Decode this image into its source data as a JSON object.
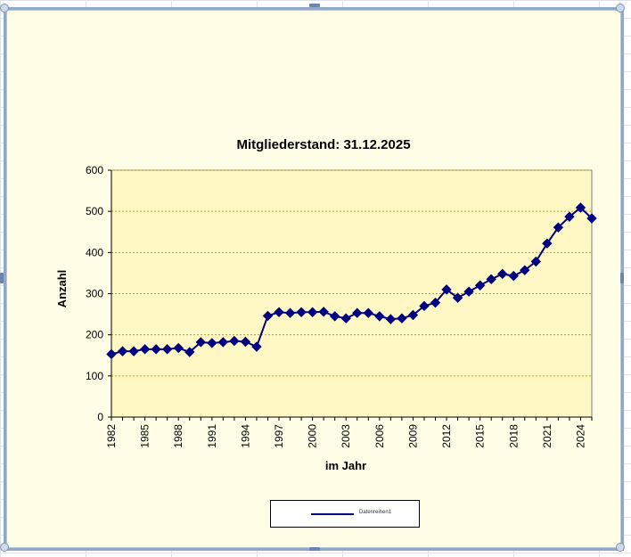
{
  "chart_data": {
    "type": "line",
    "title": "Mitgliederstand: 31.12.2025",
    "xlabel": "im Jahr",
    "ylabel": "Anzahl",
    "ylim": [
      0,
      600
    ],
    "yticks": [
      0,
      100,
      200,
      300,
      400,
      500,
      600
    ],
    "xticks": [
      1982,
      1985,
      1988,
      1991,
      1994,
      1997,
      2000,
      2003,
      2006,
      2009,
      2012,
      2015,
      2018,
      2021,
      2024
    ],
    "grid": true,
    "legend_position": "bottom",
    "series": [
      {
        "name": "Datenreihen1",
        "color": "#000080",
        "marker": "diamond",
        "x": [
          1982,
          1983,
          1984,
          1985,
          1986,
          1987,
          1988,
          1989,
          1990,
          1991,
          1992,
          1993,
          1994,
          1995,
          1996,
          1997,
          1998,
          1999,
          2000,
          2001,
          2002,
          2003,
          2004,
          2005,
          2006,
          2007,
          2008,
          2009,
          2010,
          2011,
          2012,
          2013,
          2014,
          2015,
          2016,
          2017,
          2018,
          2019,
          2020,
          2021,
          2022,
          2023,
          2024,
          2025
        ],
        "values": [
          153,
          160,
          160,
          165,
          165,
          165,
          168,
          158,
          182,
          180,
          182,
          185,
          183,
          171,
          246,
          255,
          253,
          255,
          255,
          256,
          245,
          240,
          253,
          253,
          245,
          238,
          240,
          248,
          270,
          278,
          310,
          290,
          305,
          320,
          335,
          348,
          343,
          357,
          378,
          422,
          461,
          487,
          509,
          483
        ]
      }
    ]
  },
  "colors": {
    "plot_background": "#fff8c4",
    "chart_background": "#fffde6",
    "gridline": "#c8a000",
    "series_line": "#000080"
  }
}
